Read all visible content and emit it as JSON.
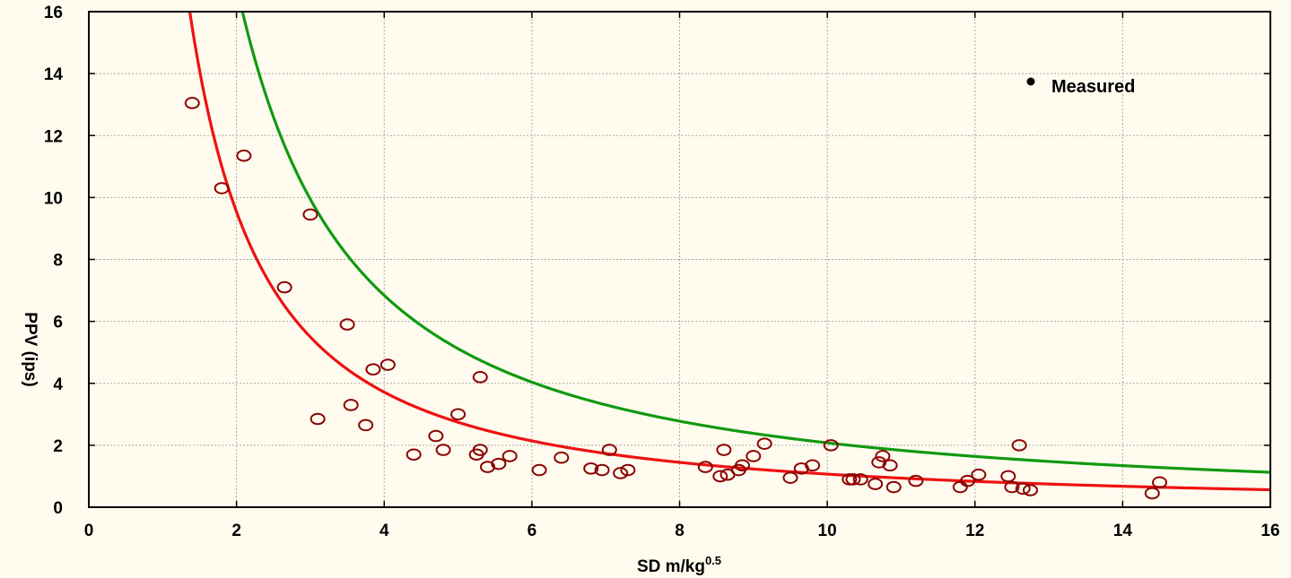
{
  "chart_data": {
    "type": "scatter",
    "title": "",
    "xlabel": "SD m/kg",
    "xlabel_superscript": "0.5",
    "ylabel": "PPV (ips)",
    "xlim": [
      0,
      16
    ],
    "ylim": [
      0,
      16
    ],
    "x_ticks": [
      0,
      2,
      4,
      6,
      8,
      10,
      12,
      14,
      16
    ],
    "y_ticks": [
      0,
      2,
      4,
      6,
      8,
      10,
      12,
      14,
      16
    ],
    "grid": true,
    "legend": {
      "position": "top-right",
      "entries": [
        "Measured"
      ]
    },
    "colors": {
      "measured": "#8b0000",
      "red_curve": "#ee1111",
      "green_curve": "#119911",
      "background": "#fffcef"
    },
    "series": [
      {
        "name": "Measured",
        "type": "scatter",
        "points": [
          [
            1.4,
            13.05
          ],
          [
            1.8,
            10.3
          ],
          [
            2.1,
            11.35
          ],
          [
            2.65,
            7.1
          ],
          [
            3.0,
            9.45
          ],
          [
            3.1,
            2.85
          ],
          [
            3.5,
            5.9
          ],
          [
            3.55,
            3.3
          ],
          [
            3.75,
            2.65
          ],
          [
            3.85,
            4.45
          ],
          [
            4.05,
            4.6
          ],
          [
            4.4,
            1.7
          ],
          [
            4.7,
            2.3
          ],
          [
            4.8,
            1.85
          ],
          [
            5.0,
            3.0
          ],
          [
            5.25,
            1.7
          ],
          [
            5.3,
            1.85
          ],
          [
            5.3,
            4.2
          ],
          [
            5.4,
            1.3
          ],
          [
            5.55,
            1.4
          ],
          [
            5.7,
            1.65
          ],
          [
            6.1,
            1.2
          ],
          [
            6.4,
            1.6
          ],
          [
            6.8,
            1.25
          ],
          [
            6.95,
            1.2
          ],
          [
            7.05,
            1.85
          ],
          [
            7.2,
            1.1
          ],
          [
            7.3,
            1.2
          ],
          [
            8.35,
            1.3
          ],
          [
            8.55,
            1.0
          ],
          [
            8.6,
            1.85
          ],
          [
            8.65,
            1.05
          ],
          [
            8.8,
            1.2
          ],
          [
            8.85,
            1.35
          ],
          [
            9.0,
            1.65
          ],
          [
            9.15,
            2.05
          ],
          [
            9.5,
            0.95
          ],
          [
            9.65,
            1.25
          ],
          [
            9.8,
            1.35
          ],
          [
            10.05,
            2.0
          ],
          [
            10.3,
            0.9
          ],
          [
            10.35,
            0.9
          ],
          [
            10.45,
            0.9
          ],
          [
            10.65,
            0.75
          ],
          [
            10.7,
            1.45
          ],
          [
            10.75,
            1.65
          ],
          [
            10.85,
            1.35
          ],
          [
            10.9,
            0.65
          ],
          [
            11.2,
            0.85
          ],
          [
            11.8,
            0.65
          ],
          [
            11.9,
            0.85
          ],
          [
            12.05,
            1.05
          ],
          [
            12.45,
            1.0
          ],
          [
            12.5,
            0.65
          ],
          [
            12.6,
            2.0
          ],
          [
            12.65,
            0.6
          ],
          [
            12.75,
            0.55
          ],
          [
            14.4,
            0.45
          ],
          [
            14.5,
            0.8
          ]
        ]
      },
      {
        "name": "",
        "type": "line",
        "color": "#ee1111",
        "model": {
          "form": "power",
          "K": 24.48,
          "b": -1.36
        }
      },
      {
        "name": "",
        "type": "line",
        "color": "#119911",
        "model": {
          "form": "power",
          "K": 41.47,
          "b": -1.3
        }
      }
    ]
  }
}
